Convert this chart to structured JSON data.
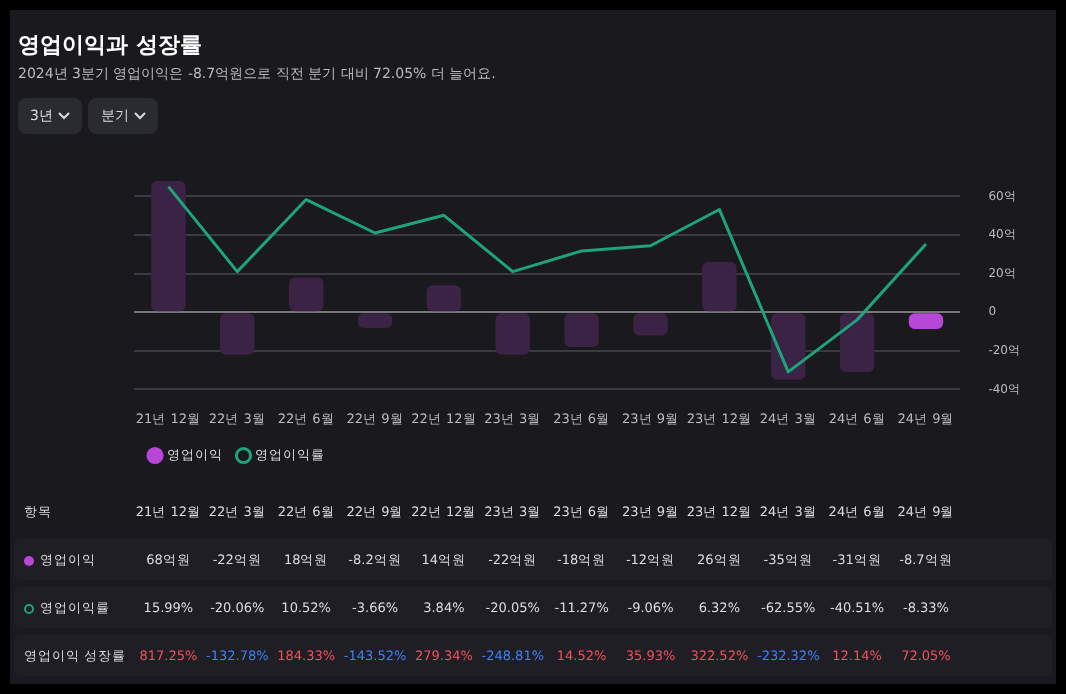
{
  "chart_data": {
    "type": "bar",
    "title": "영업이익과 성장률",
    "subtitle": "2024년 3분기 영업이익은 -8.7억원으로 직전 분기 대비 72.05% 더 늘어요.",
    "categories": [
      "21년 12월",
      "22년 3월",
      "22년 6월",
      "22년 9월",
      "22년 12월",
      "23년 3월",
      "23년 6월",
      "23년 9월",
      "23년 12월",
      "24년 3월",
      "24년 6월",
      "24년 9월"
    ],
    "series": [
      {
        "name": "영업이익",
        "colors": [
          "#3a2344",
          "#3a2344",
          "#3a2344",
          "#3a2344",
          "#3a2344",
          "#3a2344",
          "#3a2344",
          "#3a2344",
          "#3a2344",
          "#3a2344",
          "#3a2344",
          "#b846d8"
        ],
        "color": "#b846d8",
        "values": [
          68,
          -22,
          18,
          -8.2,
          14,
          -22,
          -18,
          -12,
          26,
          -35,
          -31,
          -8.7
        ],
        "value_labels": [
          "68억원",
          "-22억원",
          "18억원",
          "-8.2억원",
          "14억원",
          "-22억원",
          "-18억원",
          "-12억원",
          "26억원",
          "-35억원",
          "-31억원",
          "-8.7억원"
        ]
      },
      {
        "name": "영업이익률",
        "type": "line",
        "axis": "y2",
        "color": "#1fa37a",
        "values": [
          15.99,
          -20.06,
          10.52,
          -3.66,
          3.84,
          -20.05,
          -11.27,
          -9.06,
          6.32,
          -62.55,
          -40.51,
          -8.33
        ],
        "value_labels": [
          "15.99%",
          "-20.06%",
          "10.52%",
          "-3.66%",
          "3.84%",
          "-20.05%",
          "-11.27%",
          "-9.06%",
          "6.32%",
          "-62.55%",
          "-40.51%",
          "-8.33%"
        ]
      }
    ],
    "ylim": [
      -40,
      70
    ],
    "yticks": [
      {
        "value": -40,
        "label": "-40억"
      },
      {
        "value": -20,
        "label": "-20억"
      },
      {
        "value": 0,
        "label": "0"
      },
      {
        "value": 20,
        "label": "20억"
      },
      {
        "value": 40,
        "label": "40억"
      },
      {
        "value": 60,
        "label": "60억"
      }
    ],
    "y2lim": [
      -70,
      20
    ],
    "grid": "y",
    "legend": "bottom left",
    "marker": "none",
    "line_style": "solid",
    "annotations": [
      "3년",
      "분기",
      "항목",
      "영업이익 성장률",
      "817.25%",
      "-132.78%",
      "184.33%",
      "-143.52%",
      "279.34%",
      "-248.81%",
      "14.52%",
      "35.93%",
      "322.52%",
      "-232.32%",
      "12.14%",
      "72.05%"
    ]
  }
}
